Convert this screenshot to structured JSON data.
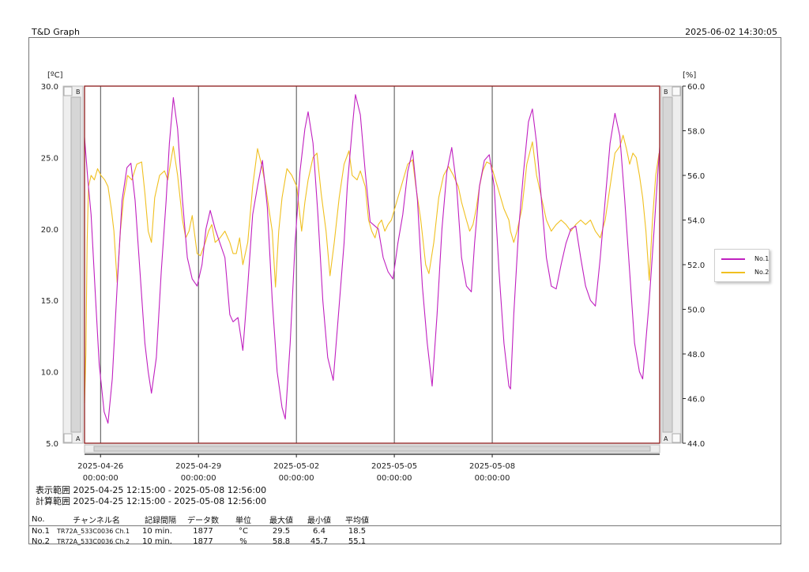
{
  "header": {
    "app_title": "T&D Graph",
    "timestamp": "2025-06-02 14:30:05"
  },
  "colors": {
    "no1": "#c020c0",
    "no2": "#f0c020",
    "frame": "#8b1a1a"
  },
  "axes": {
    "left_unit": "[ºC]",
    "right_unit": "[%]",
    "left_tick_labels": [
      "30.0",
      "25.0",
      "20.0",
      "15.0",
      "10.0",
      "5.0"
    ],
    "right_tick_labels": [
      "60.0",
      "58.0",
      "56.0",
      "54.0",
      "52.0",
      "50.0",
      "48.0",
      "46.0",
      "44.0"
    ],
    "scroll_top_label": "B",
    "scroll_bottom_label": "A"
  },
  "legend": [
    {
      "name": "No.1"
    },
    {
      "name": "No.2"
    }
  ],
  "ranges": {
    "display": "表示範囲 2025-04-25 12:15:00 - 2025-05-08 12:56:00",
    "calc": "計算範囲 2025-04-25 12:15:00 - 2025-05-08 12:56:00"
  },
  "table": {
    "headers": [
      "No.",
      "チャンネル名",
      "記録間隔",
      "データ数",
      "単位",
      "最大値",
      "最小値",
      "平均値"
    ],
    "rows": [
      {
        "no": "No.1",
        "channel": "TR72A_533C0036 Ch.1",
        "interval": "10 min.",
        "count": "1877",
        "unit": "°C",
        "max": "29.5",
        "min": "6.4",
        "avg": "18.5"
      },
      {
        "no": "No.2",
        "channel": "TR72A_533C0036 Ch.2",
        "interval": "10 min.",
        "count": "1877",
        "unit": "%",
        "max": "58.8",
        "min": "45.7",
        "avg": "55.1"
      }
    ]
  },
  "chart_data": {
    "type": "line",
    "x_start": "2025-04-25 12:15:00",
    "x_end": "2025-05-08 12:56:00",
    "x_ticks": [
      {
        "date": "2025-04-26",
        "time": "00:00:00",
        "day": 0.49
      },
      {
        "date": "2025-04-29",
        "time": "00:00:00",
        "day": 3.49
      },
      {
        "date": "2025-05-02",
        "time": "00:00:00",
        "day": 6.49
      },
      {
        "date": "2025-05-05",
        "time": "00:00:00",
        "day": 9.49
      },
      {
        "date": "2025-05-08",
        "time": "00:00:00",
        "day": 12.49
      }
    ],
    "y_left": {
      "unit": "ºC",
      "min": 5.0,
      "max": 30.0
    },
    "y_right": {
      "unit": "%",
      "min": 44.0,
      "max": 60.0
    },
    "series": [
      {
        "name": "No.1",
        "axis": "left",
        "unit": "°C",
        "points": [
          [
            0.0,
            26.4
          ],
          [
            0.1,
            23.5
          ],
          [
            0.2,
            21.0
          ],
          [
            0.33,
            15.5
          ],
          [
            0.45,
            10.5
          ],
          [
            0.6,
            7.2
          ],
          [
            0.72,
            6.4
          ],
          [
            0.85,
            9.5
          ],
          [
            1.0,
            16.0
          ],
          [
            1.15,
            22.0
          ],
          [
            1.3,
            24.3
          ],
          [
            1.42,
            24.6
          ],
          [
            1.55,
            22.0
          ],
          [
            1.7,
            17.0
          ],
          [
            1.85,
            12.0
          ],
          [
            1.95,
            10.0
          ],
          [
            2.05,
            8.5
          ],
          [
            2.2,
            11.0
          ],
          [
            2.35,
            17.0
          ],
          [
            2.5,
            22.0
          ],
          [
            2.6,
            26.0
          ],
          [
            2.72,
            29.2
          ],
          [
            2.85,
            27.0
          ],
          [
            3.0,
            22.0
          ],
          [
            3.15,
            18.0
          ],
          [
            3.3,
            16.5
          ],
          [
            3.45,
            16.0
          ],
          [
            3.6,
            17.5
          ],
          [
            3.72,
            20.0
          ],
          [
            3.85,
            21.3
          ],
          [
            4.0,
            20.0
          ],
          [
            4.15,
            19.0
          ],
          [
            4.3,
            18.0
          ],
          [
            4.45,
            14.0
          ],
          [
            4.55,
            13.5
          ],
          [
            4.7,
            13.8
          ],
          [
            4.85,
            11.5
          ],
          [
            5.0,
            16.0
          ],
          [
            5.15,
            21.0
          ],
          [
            5.3,
            23.0
          ],
          [
            5.45,
            24.8
          ],
          [
            5.6,
            21.5
          ],
          [
            5.75,
            15.0
          ],
          [
            5.9,
            10.0
          ],
          [
            6.05,
            7.5
          ],
          [
            6.15,
            6.7
          ],
          [
            6.3,
            12.0
          ],
          [
            6.45,
            19.0
          ],
          [
            6.6,
            24.0
          ],
          [
            6.75,
            27.0
          ],
          [
            6.85,
            28.2
          ],
          [
            7.0,
            26.0
          ],
          [
            7.15,
            21.0
          ],
          [
            7.3,
            15.0
          ],
          [
            7.45,
            11.0
          ],
          [
            7.62,
            9.4
          ],
          [
            7.78,
            14.0
          ],
          [
            7.95,
            19.0
          ],
          [
            8.05,
            23.0
          ],
          [
            8.2,
            27.0
          ],
          [
            8.3,
            29.4
          ],
          [
            8.45,
            28.0
          ],
          [
            8.6,
            24.0
          ],
          [
            8.75,
            20.5
          ],
          [
            8.9,
            20.2
          ],
          [
            9.0,
            20.0
          ],
          [
            9.15,
            18.0
          ],
          [
            9.3,
            17.0
          ],
          [
            9.45,
            16.5
          ],
          [
            9.6,
            19.0
          ],
          [
            9.75,
            21.0
          ],
          [
            9.9,
            24.0
          ],
          [
            10.05,
            25.5
          ],
          [
            10.2,
            22.0
          ],
          [
            10.35,
            16.0
          ],
          [
            10.5,
            12.0
          ],
          [
            10.65,
            9.0
          ],
          [
            10.8,
            14.0
          ],
          [
            10.95,
            20.0
          ],
          [
            11.1,
            24.0
          ],
          [
            11.25,
            25.7
          ],
          [
            11.4,
            23.0
          ],
          [
            11.55,
            18.0
          ],
          [
            11.7,
            16.0
          ],
          [
            11.85,
            15.6
          ],
          [
            11.95,
            19.0
          ],
          [
            12.1,
            23.0
          ],
          [
            12.25,
            24.8
          ],
          [
            12.4,
            25.2
          ],
          [
            12.55,
            23.0
          ],
          [
            12.7,
            17.0
          ],
          [
            12.85,
            12.0
          ],
          [
            13.0,
            9.0
          ],
          [
            13.05,
            8.8
          ],
          [
            13.15,
            14.0
          ],
          [
            13.3,
            20.0
          ],
          [
            13.45,
            24.0
          ],
          [
            13.6,
            27.5
          ],
          [
            13.72,
            28.4
          ],
          [
            13.85,
            26.0
          ],
          [
            14.0,
            22.0
          ],
          [
            14.15,
            18.0
          ],
          [
            14.3,
            16.0
          ],
          [
            14.45,
            15.8
          ],
          [
            14.6,
            17.5
          ],
          [
            14.75,
            19.0
          ],
          [
            14.9,
            20.0
          ],
          [
            15.05,
            20.2
          ],
          [
            15.2,
            18.0
          ],
          [
            15.35,
            16.0
          ],
          [
            15.5,
            15.0
          ],
          [
            15.65,
            14.6
          ],
          [
            15.8,
            18.0
          ],
          [
            15.95,
            22.0
          ],
          [
            16.1,
            26.0
          ],
          [
            16.25,
            28.1
          ],
          [
            16.4,
            26.5
          ],
          [
            16.55,
            22.0
          ],
          [
            16.7,
            17.0
          ],
          [
            16.85,
            12.0
          ],
          [
            17.0,
            10.0
          ],
          [
            17.1,
            9.5
          ],
          [
            17.3,
            15.0
          ],
          [
            17.45,
            20.0
          ],
          [
            17.55,
            23.5
          ],
          [
            17.62,
            25.7
          ]
        ]
      },
      {
        "name": "No.2",
        "axis": "right",
        "unit": "%",
        "points": [
          [
            0.0,
            45.8
          ],
          [
            0.04,
            48.0
          ],
          [
            0.08,
            53.0
          ],
          [
            0.12,
            55.5
          ],
          [
            0.2,
            56.0
          ],
          [
            0.3,
            55.8
          ],
          [
            0.4,
            56.3
          ],
          [
            0.5,
            56.0
          ],
          [
            0.62,
            55.8
          ],
          [
            0.72,
            55.5
          ],
          [
            0.82,
            54.5
          ],
          [
            0.9,
            53.5
          ],
          [
            1.0,
            51.2
          ],
          [
            1.1,
            53.5
          ],
          [
            1.2,
            55.0
          ],
          [
            1.32,
            56.0
          ],
          [
            1.45,
            55.8
          ],
          [
            1.6,
            56.5
          ],
          [
            1.75,
            56.6
          ],
          [
            1.85,
            55.2
          ],
          [
            1.95,
            53.5
          ],
          [
            2.05,
            53.0
          ],
          [
            2.15,
            55.0
          ],
          [
            2.3,
            56.0
          ],
          [
            2.45,
            56.2
          ],
          [
            2.55,
            55.8
          ],
          [
            2.62,
            56.4
          ],
          [
            2.72,
            57.3
          ],
          [
            2.85,
            56.0
          ],
          [
            3.0,
            54.0
          ],
          [
            3.1,
            53.2
          ],
          [
            3.2,
            53.5
          ],
          [
            3.3,
            54.2
          ],
          [
            3.45,
            52.5
          ],
          [
            3.55,
            52.4
          ],
          [
            3.7,
            53.0
          ],
          [
            3.8,
            53.5
          ],
          [
            3.9,
            53.8
          ],
          [
            4.0,
            53.0
          ],
          [
            4.15,
            53.2
          ],
          [
            4.3,
            53.5
          ],
          [
            4.45,
            53.0
          ],
          [
            4.55,
            52.5
          ],
          [
            4.65,
            52.5
          ],
          [
            4.75,
            53.2
          ],
          [
            4.85,
            52.0
          ],
          [
            5.0,
            53.0
          ],
          [
            5.15,
            55.5
          ],
          [
            5.3,
            57.2
          ],
          [
            5.42,
            56.5
          ],
          [
            5.55,
            55.5
          ],
          [
            5.65,
            54.5
          ],
          [
            5.75,
            53.5
          ],
          [
            5.85,
            51.0
          ],
          [
            5.95,
            53.5
          ],
          [
            6.05,
            55.0
          ],
          [
            6.2,
            56.3
          ],
          [
            6.35,
            56.0
          ],
          [
            6.5,
            55.5
          ],
          [
            6.65,
            53.5
          ],
          [
            6.75,
            54.8
          ],
          [
            6.85,
            55.8
          ],
          [
            7.0,
            56.8
          ],
          [
            7.12,
            57.0
          ],
          [
            7.25,
            55.2
          ],
          [
            7.4,
            53.5
          ],
          [
            7.52,
            51.5
          ],
          [
            7.65,
            53.0
          ],
          [
            7.8,
            55.0
          ],
          [
            7.95,
            56.5
          ],
          [
            8.1,
            57.1
          ],
          [
            8.2,
            56.0
          ],
          [
            8.35,
            55.8
          ],
          [
            8.45,
            56.2
          ],
          [
            8.6,
            55.5
          ],
          [
            8.7,
            54.0
          ],
          [
            8.8,
            53.5
          ],
          [
            8.9,
            53.2
          ],
          [
            9.0,
            53.8
          ],
          [
            9.1,
            54.0
          ],
          [
            9.2,
            53.5
          ],
          [
            9.3,
            53.8
          ],
          [
            9.4,
            54.0
          ],
          [
            9.5,
            54.5
          ],
          [
            9.6,
            55.0
          ],
          [
            9.7,
            55.5
          ],
          [
            9.8,
            56.0
          ],
          [
            9.9,
            56.5
          ],
          [
            10.05,
            56.7
          ],
          [
            10.15,
            55.5
          ],
          [
            10.3,
            54.0
          ],
          [
            10.45,
            52.0
          ],
          [
            10.55,
            51.6
          ],
          [
            10.7,
            53.0
          ],
          [
            10.85,
            55.0
          ],
          [
            11.0,
            56.0
          ],
          [
            11.15,
            56.4
          ],
          [
            11.3,
            56.0
          ],
          [
            11.45,
            55.5
          ],
          [
            11.55,
            54.8
          ],
          [
            11.7,
            54.0
          ],
          [
            11.8,
            53.5
          ],
          [
            11.9,
            53.8
          ],
          [
            12.0,
            54.5
          ],
          [
            12.1,
            55.5
          ],
          [
            12.2,
            56.2
          ],
          [
            12.32,
            56.6
          ],
          [
            12.45,
            56.5
          ],
          [
            12.55,
            56.0
          ],
          [
            12.65,
            55.5
          ],
          [
            12.75,
            55.0
          ],
          [
            12.85,
            54.5
          ],
          [
            13.0,
            54.0
          ],
          [
            13.05,
            53.5
          ],
          [
            13.15,
            53.0
          ],
          [
            13.25,
            53.5
          ],
          [
            13.4,
            54.5
          ],
          [
            13.55,
            56.5
          ],
          [
            13.72,
            57.5
          ],
          [
            13.85,
            56.0
          ],
          [
            14.0,
            55.0
          ],
          [
            14.15,
            54.0
          ],
          [
            14.3,
            53.5
          ],
          [
            14.45,
            53.8
          ],
          [
            14.6,
            54.0
          ],
          [
            14.75,
            53.8
          ],
          [
            14.9,
            53.5
          ],
          [
            15.05,
            53.8
          ],
          [
            15.2,
            54.0
          ],
          [
            15.35,
            53.8
          ],
          [
            15.5,
            54.0
          ],
          [
            15.65,
            53.5
          ],
          [
            15.8,
            53.2
          ],
          [
            15.95,
            54.0
          ],
          [
            16.1,
            55.5
          ],
          [
            16.25,
            57.0
          ],
          [
            16.4,
            57.3
          ],
          [
            16.5,
            57.8
          ],
          [
            16.6,
            57.2
          ],
          [
            16.7,
            56.5
          ],
          [
            16.8,
            57.0
          ],
          [
            16.9,
            56.8
          ],
          [
            17.0,
            56.0
          ],
          [
            17.1,
            55.0
          ],
          [
            17.2,
            53.5
          ],
          [
            17.3,
            51.3
          ],
          [
            17.4,
            54.0
          ],
          [
            17.5,
            56.0
          ],
          [
            17.6,
            57.0
          ]
        ]
      }
    ]
  }
}
